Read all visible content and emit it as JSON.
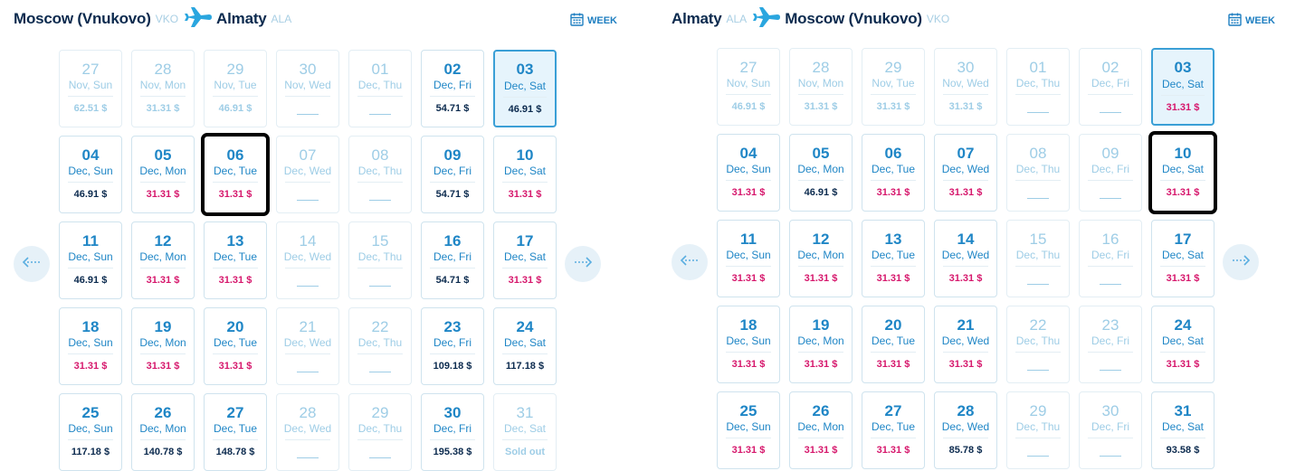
{
  "panels": [
    {
      "from_city": "Moscow (Vnukovo)",
      "from_code": "VKO",
      "to_city": "Almaty",
      "to_code": "ALA",
      "week_label": "WEEK",
      "cells": [
        {
          "day": "27",
          "month": "Nov, Sun",
          "price": "62.51 $",
          "state": "dim"
        },
        {
          "day": "28",
          "month": "Nov, Mon",
          "price": "31.31 $",
          "state": "dim"
        },
        {
          "day": "29",
          "month": "Nov, Tue",
          "price": "46.91 $",
          "state": "dim"
        },
        {
          "day": "30",
          "month": "Nov, Wed",
          "price": "",
          "state": "dim"
        },
        {
          "day": "01",
          "month": "Dec, Thu",
          "price": "",
          "state": "dim"
        },
        {
          "day": "02",
          "month": "Dec, Fri",
          "price": "54.71 $",
          "state": "normal"
        },
        {
          "day": "03",
          "month": "Dec, Sat",
          "price": "46.91 $",
          "state": "selected"
        },
        {
          "day": "04",
          "month": "Dec, Sun",
          "price": "46.91 $",
          "state": "normal"
        },
        {
          "day": "05",
          "month": "Dec, Mon",
          "price": "31.31 $",
          "state": "pink"
        },
        {
          "day": "06",
          "month": "Dec, Tue",
          "price": "31.31 $",
          "state": "pink",
          "highlight": true
        },
        {
          "day": "07",
          "month": "Dec, Wed",
          "price": "",
          "state": "dim"
        },
        {
          "day": "08",
          "month": "Dec, Thu",
          "price": "",
          "state": "dim"
        },
        {
          "day": "09",
          "month": "Dec, Fri",
          "price": "54.71 $",
          "state": "normal"
        },
        {
          "day": "10",
          "month": "Dec, Sat",
          "price": "31.31 $",
          "state": "pink"
        },
        {
          "day": "11",
          "month": "Dec, Sun",
          "price": "46.91 $",
          "state": "normal"
        },
        {
          "day": "12",
          "month": "Dec, Mon",
          "price": "31.31 $",
          "state": "pink"
        },
        {
          "day": "13",
          "month": "Dec, Tue",
          "price": "31.31 $",
          "state": "pink"
        },
        {
          "day": "14",
          "month": "Dec, Wed",
          "price": "",
          "state": "dim"
        },
        {
          "day": "15",
          "month": "Dec, Thu",
          "price": "",
          "state": "dim"
        },
        {
          "day": "16",
          "month": "Dec, Fri",
          "price": "54.71 $",
          "state": "normal"
        },
        {
          "day": "17",
          "month": "Dec, Sat",
          "price": "31.31 $",
          "state": "pink"
        },
        {
          "day": "18",
          "month": "Dec, Sun",
          "price": "31.31 $",
          "state": "pink"
        },
        {
          "day": "19",
          "month": "Dec, Mon",
          "price": "31.31 $",
          "state": "pink"
        },
        {
          "day": "20",
          "month": "Dec, Tue",
          "price": "31.31 $",
          "state": "pink"
        },
        {
          "day": "21",
          "month": "Dec, Wed",
          "price": "",
          "state": "dim"
        },
        {
          "day": "22",
          "month": "Dec, Thu",
          "price": "",
          "state": "dim"
        },
        {
          "day": "23",
          "month": "Dec, Fri",
          "price": "109.18 $",
          "state": "normal"
        },
        {
          "day": "24",
          "month": "Dec, Sat",
          "price": "117.18 $",
          "state": "normal"
        },
        {
          "day": "25",
          "month": "Dec, Sun",
          "price": "117.18 $",
          "state": "normal"
        },
        {
          "day": "26",
          "month": "Dec, Mon",
          "price": "140.78 $",
          "state": "normal"
        },
        {
          "day": "27",
          "month": "Dec, Tue",
          "price": "148.78 $",
          "state": "normal"
        },
        {
          "day": "28",
          "month": "Dec, Wed",
          "price": "",
          "state": "dim"
        },
        {
          "day": "29",
          "month": "Dec, Thu",
          "price": "",
          "state": "dim"
        },
        {
          "day": "30",
          "month": "Dec, Fri",
          "price": "195.38 $",
          "state": "normal"
        },
        {
          "day": "31",
          "month": "Dec, Sat",
          "price": "Sold out",
          "state": "sold"
        }
      ]
    },
    {
      "from_city": "Almaty",
      "from_code": "ALA",
      "to_city": "Moscow (Vnukovo)",
      "to_code": "VKO",
      "week_label": "WEEK",
      "cells": [
        {
          "day": "27",
          "month": "Nov, Sun",
          "price": "46.91 $",
          "state": "dim"
        },
        {
          "day": "28",
          "month": "Nov, Mon",
          "price": "31.31 $",
          "state": "dim"
        },
        {
          "day": "29",
          "month": "Nov, Tue",
          "price": "31.31 $",
          "state": "dim"
        },
        {
          "day": "30",
          "month": "Nov, Wed",
          "price": "31.31 $",
          "state": "dim"
        },
        {
          "day": "01",
          "month": "Dec, Thu",
          "price": "",
          "state": "dim"
        },
        {
          "day": "02",
          "month": "Dec, Fri",
          "price": "",
          "state": "dim"
        },
        {
          "day": "03",
          "month": "Dec, Sat",
          "price": "31.31 $",
          "state": "selected-pink"
        },
        {
          "day": "04",
          "month": "Dec, Sun",
          "price": "31.31 $",
          "state": "pink"
        },
        {
          "day": "05",
          "month": "Dec, Mon",
          "price": "46.91 $",
          "state": "normal"
        },
        {
          "day": "06",
          "month": "Dec, Tue",
          "price": "31.31 $",
          "state": "pink"
        },
        {
          "day": "07",
          "month": "Dec, Wed",
          "price": "31.31 $",
          "state": "pink"
        },
        {
          "day": "08",
          "month": "Dec, Thu",
          "price": "",
          "state": "dim"
        },
        {
          "day": "09",
          "month": "Dec, Fri",
          "price": "",
          "state": "dim"
        },
        {
          "day": "10",
          "month": "Dec, Sat",
          "price": "31.31 $",
          "state": "pink",
          "highlight": true
        },
        {
          "day": "11",
          "month": "Dec, Sun",
          "price": "31.31 $",
          "state": "pink"
        },
        {
          "day": "12",
          "month": "Dec, Mon",
          "price": "31.31 $",
          "state": "pink"
        },
        {
          "day": "13",
          "month": "Dec, Tue",
          "price": "31.31 $",
          "state": "pink"
        },
        {
          "day": "14",
          "month": "Dec, Wed",
          "price": "31.31 $",
          "state": "pink"
        },
        {
          "day": "15",
          "month": "Dec, Thu",
          "price": "",
          "state": "dim"
        },
        {
          "day": "16",
          "month": "Dec, Fri",
          "price": "",
          "state": "dim"
        },
        {
          "day": "17",
          "month": "Dec, Sat",
          "price": "31.31 $",
          "state": "pink"
        },
        {
          "day": "18",
          "month": "Dec, Sun",
          "price": "31.31 $",
          "state": "pink"
        },
        {
          "day": "19",
          "month": "Dec, Mon",
          "price": "31.31 $",
          "state": "pink"
        },
        {
          "day": "20",
          "month": "Dec, Tue",
          "price": "31.31 $",
          "state": "pink"
        },
        {
          "day": "21",
          "month": "Dec, Wed",
          "price": "31.31 $",
          "state": "pink"
        },
        {
          "day": "22",
          "month": "Dec, Thu",
          "price": "",
          "state": "dim"
        },
        {
          "day": "23",
          "month": "Dec, Fri",
          "price": "",
          "state": "dim"
        },
        {
          "day": "24",
          "month": "Dec, Sat",
          "price": "31.31 $",
          "state": "pink"
        },
        {
          "day": "25",
          "month": "Dec, Sun",
          "price": "31.31 $",
          "state": "pink"
        },
        {
          "day": "26",
          "month": "Dec, Mon",
          "price": "31.31 $",
          "state": "pink"
        },
        {
          "day": "27",
          "month": "Dec, Tue",
          "price": "31.31 $",
          "state": "pink"
        },
        {
          "day": "28",
          "month": "Dec, Wed",
          "price": "85.78 $",
          "state": "normal"
        },
        {
          "day": "29",
          "month": "Dec, Thu",
          "price": "",
          "state": "dim"
        },
        {
          "day": "30",
          "month": "Dec, Fri",
          "price": "",
          "state": "dim"
        },
        {
          "day": "31",
          "month": "Dec, Sat",
          "price": "93.58 $",
          "state": "normal"
        }
      ]
    }
  ],
  "icons": {
    "plane": "plane-icon",
    "calendar": "calendar-icon",
    "prev": "arrow-left-icon",
    "next": "arrow-right-icon"
  },
  "colors": {
    "accent": "#1f86c6",
    "price_normal": "#0b2a4e",
    "price_cheap": "#d6176c",
    "dim": "#9ecde6",
    "selected_bg": "#e6f4fc",
    "selected_border": "#3a9fd6"
  }
}
